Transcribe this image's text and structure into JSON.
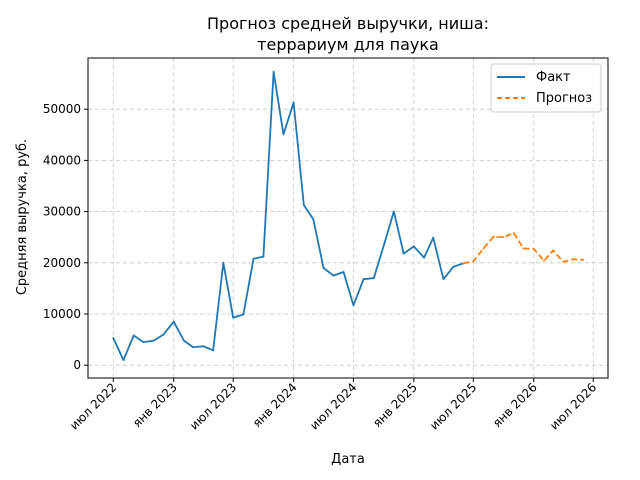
{
  "chart_data": {
    "type": "line",
    "title_lines": [
      "Прогноз средней выручки, ниша:",
      "террариум для паука"
    ],
    "xlabel": "Дата",
    "ylabel": "Средняя выручка, руб.",
    "xlim": [
      "2022-04-15",
      "2026-08-15"
    ],
    "ylim": [
      -2500,
      60000
    ],
    "x_ticks": [
      {
        "date": "2022-07-01",
        "label": "июл 2022"
      },
      {
        "date": "2023-01-01",
        "label": "янв 2023"
      },
      {
        "date": "2023-07-01",
        "label": "июл 2023"
      },
      {
        "date": "2024-01-01",
        "label": "янв 2024"
      },
      {
        "date": "2024-07-01",
        "label": "июл 2024"
      },
      {
        "date": "2025-01-01",
        "label": "янв 2025"
      },
      {
        "date": "2025-07-01",
        "label": "июл 2025"
      },
      {
        "date": "2026-01-01",
        "label": "янв 2026"
      },
      {
        "date": "2026-07-01",
        "label": "июл 2026"
      }
    ],
    "y_ticks": [
      {
        "value": 0,
        "label": "0"
      },
      {
        "value": 10000,
        "label": "10000"
      },
      {
        "value": 20000,
        "label": "20000"
      },
      {
        "value": 30000,
        "label": "30000"
      },
      {
        "value": 40000,
        "label": "40000"
      },
      {
        "value": 50000,
        "label": "50000"
      }
    ],
    "grid": true,
    "legend_position": "top-right",
    "series": [
      {
        "name": "Факт",
        "color": "#1f77b4",
        "style": "solid",
        "points": [
          {
            "x": "2022-07-01",
            "y": 5300
          },
          {
            "x": "2022-08-01",
            "y": 1000
          },
          {
            "x": "2022-09-01",
            "y": 5800
          },
          {
            "x": "2022-10-01",
            "y": 4500
          },
          {
            "x": "2022-11-01",
            "y": 4800
          },
          {
            "x": "2022-12-01",
            "y": 6000
          },
          {
            "x": "2023-01-01",
            "y": 8500
          },
          {
            "x": "2023-02-01",
            "y": 4800
          },
          {
            "x": "2023-03-01",
            "y": 3500
          },
          {
            "x": "2023-04-01",
            "y": 3700
          },
          {
            "x": "2023-05-01",
            "y": 2900
          },
          {
            "x": "2023-06-01",
            "y": 20000
          },
          {
            "x": "2023-07-01",
            "y": 9300
          },
          {
            "x": "2023-08-01",
            "y": 9900
          },
          {
            "x": "2023-09-01",
            "y": 20800
          },
          {
            "x": "2023-10-01",
            "y": 21200
          },
          {
            "x": "2023-11-01",
            "y": 57300
          },
          {
            "x": "2023-12-01",
            "y": 45100
          },
          {
            "x": "2024-01-01",
            "y": 51300
          },
          {
            "x": "2024-02-01",
            "y": 31300
          },
          {
            "x": "2024-03-01",
            "y": 28500
          },
          {
            "x": "2024-04-01",
            "y": 19000
          },
          {
            "x": "2024-05-01",
            "y": 17500
          },
          {
            "x": "2024-06-01",
            "y": 18200
          },
          {
            "x": "2024-07-01",
            "y": 11700
          },
          {
            "x": "2024-08-01",
            "y": 16800
          },
          {
            "x": "2024-09-01",
            "y": 17000
          },
          {
            "x": "2024-10-01",
            "y": 23300
          },
          {
            "x": "2024-11-01",
            "y": 30000
          },
          {
            "x": "2024-12-01",
            "y": 21800
          },
          {
            "x": "2025-01-01",
            "y": 23200
          },
          {
            "x": "2025-02-01",
            "y": 21000
          },
          {
            "x": "2025-03-01",
            "y": 24900
          },
          {
            "x": "2025-04-01",
            "y": 16800
          },
          {
            "x": "2025-05-01",
            "y": 19200
          },
          {
            "x": "2025-06-01",
            "y": 19900
          }
        ]
      },
      {
        "name": "Прогноз",
        "color": "#ff7f0e",
        "style": "dashed",
        "points": [
          {
            "x": "2025-06-01",
            "y": 19900
          },
          {
            "x": "2025-07-01",
            "y": 20300
          },
          {
            "x": "2025-08-01",
            "y": 22800
          },
          {
            "x": "2025-09-01",
            "y": 25100
          },
          {
            "x": "2025-10-01",
            "y": 25000
          },
          {
            "x": "2025-11-01",
            "y": 25800
          },
          {
            "x": "2025-12-01",
            "y": 22800
          },
          {
            "x": "2026-01-01",
            "y": 22700
          },
          {
            "x": "2026-02-01",
            "y": 20400
          },
          {
            "x": "2026-03-01",
            "y": 22400
          },
          {
            "x": "2026-04-01",
            "y": 20200
          },
          {
            "x": "2026-05-01",
            "y": 20700
          },
          {
            "x": "2026-06-01",
            "y": 20600
          }
        ]
      }
    ]
  }
}
